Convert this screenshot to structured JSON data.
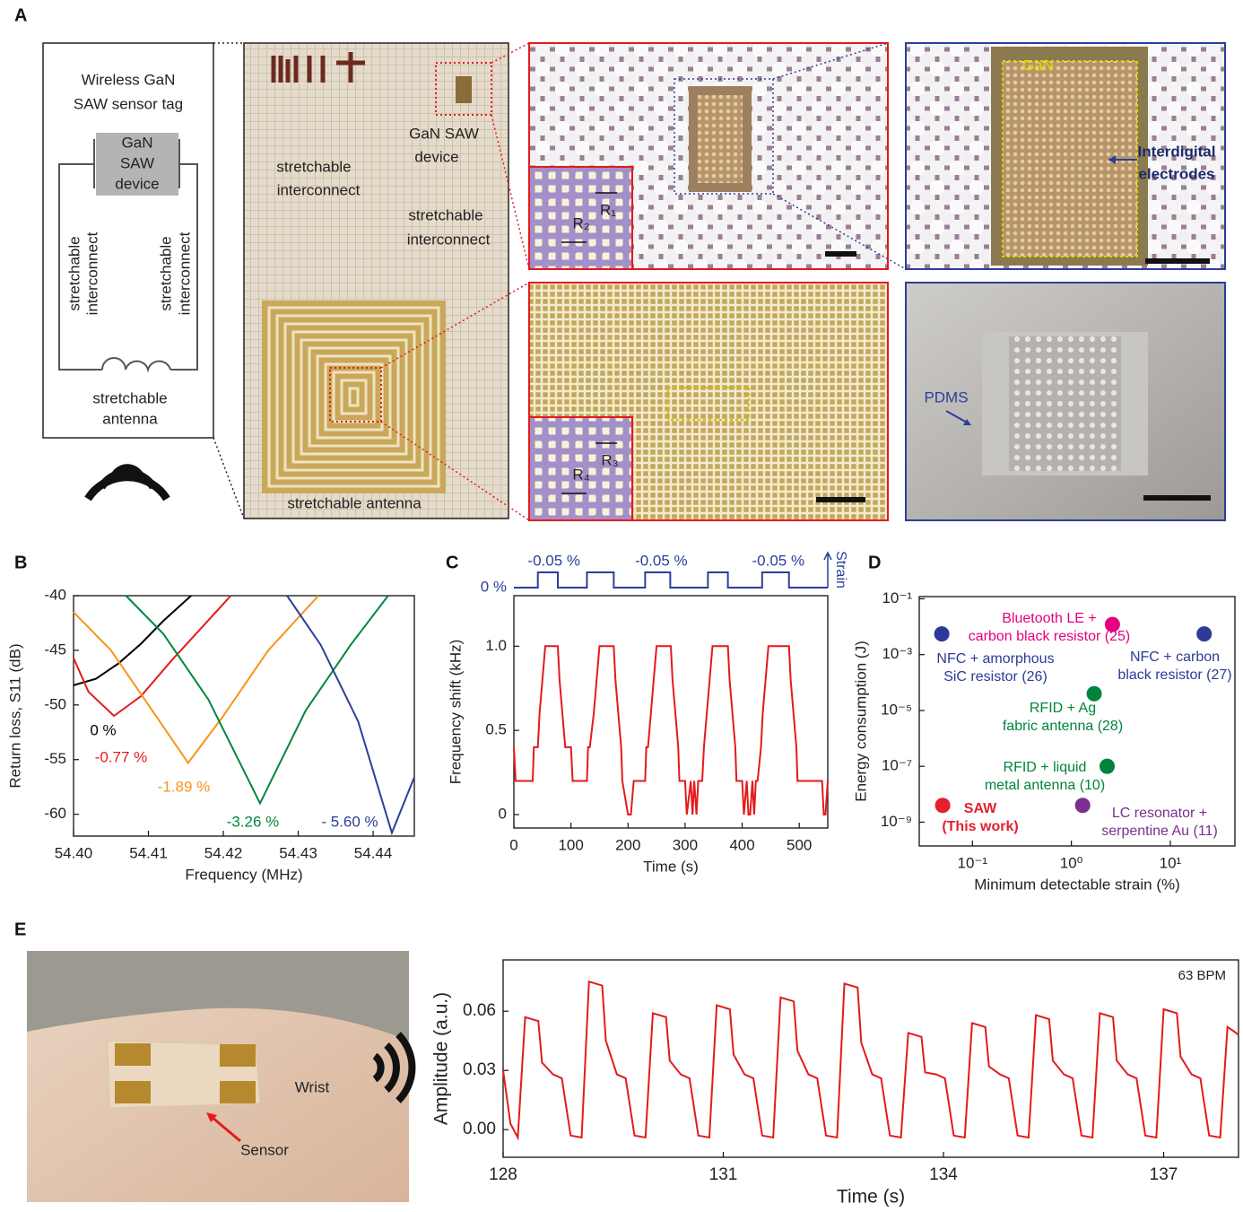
{
  "panel_a": {
    "label": "A",
    "schematic": {
      "title": [
        "Wireless GaN",
        "SAW sensor tag"
      ],
      "device": [
        "GaN",
        "SAW",
        "device"
      ],
      "interconnect_left": [
        "stretchable",
        "interconnect"
      ],
      "interconnect_right": [
        "stretchable",
        "interconnect"
      ],
      "antenna": [
        "stretchable",
        "antenna"
      ]
    },
    "photo": {
      "device": [
        "GaN SAW",
        "device"
      ],
      "interconnect_left": [
        "stretchable",
        "interconnect"
      ],
      "interconnect_right": [
        "stretchable",
        "interconnect"
      ],
      "antenna": "stretchable antenna"
    },
    "zoom_top": {
      "r1": "R₁",
      "r2": "R₂"
    },
    "zoom_bottom": {
      "r3": "R₃",
      "r4": "R₄"
    },
    "device_zoom": {
      "material": "GaN",
      "electrodes": [
        "Interdigital",
        "electrodes"
      ]
    },
    "sem": {
      "material": "PDMS"
    }
  },
  "panel_e": {
    "label": "E",
    "photo": {
      "site": "Wrist",
      "sensor": "Sensor"
    }
  },
  "chart_data": [
    {
      "type": "line",
      "panel_label": "B",
      "x_label": "Frequency (MHz)",
      "y_label": "Return loss, S11 (dB)",
      "xlim": [
        54.4,
        54.4455
      ],
      "ylim": [
        -62,
        -40
      ],
      "xticks": [
        {
          "value": 54.4,
          "label": "54.40"
        },
        54.41,
        54.42,
        54.43,
        54.44
      ],
      "yticks": [
        -40,
        -45,
        -50,
        -55,
        -60
      ],
      "series": [
        {
          "name": "0 %",
          "color": "#000000",
          "x": [
            54.4,
            54.403,
            54.406,
            54.409,
            54.412,
            54.4157
          ],
          "values": [
            -48.2,
            -47.6,
            -46.2,
            -44.4,
            -42.3,
            -40
          ]
        },
        {
          "name": "-0.77 %",
          "color": "#e41a1c",
          "x": [
            54.4,
            54.402,
            54.4054,
            54.409,
            54.413,
            54.417,
            54.421
          ],
          "values": [
            -45.7,
            -48.8,
            -51,
            -49.2,
            -46,
            -43,
            -40
          ]
        },
        {
          "name": "-1.89 %",
          "color": "#f7941d",
          "x": [
            54.4,
            54.405,
            54.41,
            54.4153,
            54.42,
            54.426,
            54.4327
          ],
          "values": [
            -41.5,
            -45,
            -50,
            -55.3,
            -51,
            -45,
            -40
          ]
        },
        {
          "name": "-3.26 %",
          "color": "#00873e",
          "x": [
            54.407,
            54.412,
            54.418,
            54.4249,
            54.431,
            54.437,
            54.442
          ],
          "values": [
            -40,
            -43.5,
            -49.5,
            -59,
            -50.5,
            -44.5,
            -40
          ]
        },
        {
          "name": "- 5.60 %",
          "color": "#2b3f99",
          "x": [
            54.4285,
            54.433,
            54.438,
            54.4425,
            54.4455
          ],
          "values": [
            -40,
            -44.5,
            -51.5,
            -61.7,
            -56.6
          ]
        }
      ]
    },
    {
      "type": "line",
      "panel_label": "C",
      "x_label": "Time (s)",
      "y_label": "Frequency shift (kHz)",
      "xlim": [
        0,
        550
      ],
      "ylim": [
        -0.08,
        1.3
      ],
      "xticks": [
        0,
        100,
        200,
        300,
        400,
        500
      ],
      "yticks": [
        0,
        0.5,
        {
          "value": 1,
          "label": "1.0"
        }
      ],
      "color": "#e41a1c",
      "x": [
        0,
        3,
        33,
        35,
        42,
        45,
        50,
        55,
        60,
        77,
        80,
        85,
        90,
        95,
        100,
        103,
        128,
        130,
        133,
        140,
        145,
        150,
        155,
        175,
        178,
        183,
        188,
        190,
        200,
        205,
        210,
        230,
        232,
        235,
        240,
        245,
        250,
        255,
        275,
        278,
        283,
        288,
        290,
        300,
        303,
        310,
        313,
        316,
        320,
        323,
        330,
        333,
        338,
        343,
        348,
        353,
        375,
        378,
        383,
        388,
        390,
        400,
        403,
        408,
        411,
        414,
        418,
        421,
        424,
        427,
        433,
        436,
        441,
        446,
        451,
        456,
        482,
        485,
        490,
        495,
        497,
        510,
        540,
        543,
        546,
        550
      ],
      "values": [
        0.4,
        0.2,
        0.2,
        0.4,
        0.4,
        0.6,
        0.8,
        1.0,
        1.0,
        1.0,
        0.8,
        0.6,
        0.4,
        0.4,
        0.4,
        0.2,
        0.2,
        0.4,
        0.4,
        0.6,
        0.8,
        1.0,
        1.0,
        1.0,
        0.8,
        0.6,
        0.4,
        0.2,
        0,
        0,
        0.2,
        0.2,
        0.4,
        0.4,
        0.6,
        0.8,
        1.0,
        1.0,
        1.0,
        0.8,
        0.6,
        0.4,
        0.2,
        0.2,
        0,
        0.2,
        0,
        0.2,
        0,
        0.2,
        0.2,
        0.4,
        0.6,
        0.8,
        1.0,
        1.0,
        1.0,
        0.8,
        0.6,
        0.4,
        0.2,
        0.2,
        0,
        0.2,
        0,
        0,
        0.2,
        0,
        0.2,
        0.2,
        0.4,
        0.6,
        0.8,
        1.0,
        1.0,
        1.0,
        1.0,
        0.8,
        0.6,
        0.4,
        0.2,
        0.2,
        0.2,
        0,
        0,
        0.2
      ],
      "strain": {
        "label": "Strain",
        "baseline_label": "0 %",
        "pulse_labels": [
          "-0.05 %",
          "-0.05 %",
          "-0.05 %"
        ],
        "color": "#2b3f99",
        "ylim": [
          0,
          -0.05
        ],
        "x": [
          0,
          42,
          42,
          77,
          77,
          128,
          128,
          175,
          175,
          230,
          230,
          274,
          274,
          340,
          340,
          375,
          375,
          435,
          435,
          482,
          482,
          550
        ],
        "values": [
          0,
          0,
          -0.05,
          -0.05,
          0,
          0,
          -0.05,
          -0.05,
          0,
          0,
          -0.05,
          -0.05,
          0,
          0,
          -0.05,
          -0.05,
          0,
          0,
          -0.05,
          -0.05,
          0,
          0
        ]
      }
    },
    {
      "type": "scatter",
      "panel_label": "D",
      "x_label": "Minimum detectable strain (%)",
      "y_label": "Energy consumption (J)",
      "xscale": "log",
      "yscale": "log",
      "xlim": [
        0.029,
        45
      ],
      "ylim": [
        1.4e-10,
        0.12
      ],
      "xticks": [
        {
          "value": 0.1,
          "label": "10⁻¹"
        },
        {
          "value": 1,
          "label": "10⁰"
        },
        {
          "value": 10,
          "label": "10¹"
        }
      ],
      "yticks": [
        {
          "value": 0.1,
          "label": "10⁻¹"
        },
        {
          "value": 0.001,
          "label": "10⁻³"
        },
        {
          "value": 1e-05,
          "label": "10⁻⁵"
        },
        {
          "value": 1e-07,
          "label": "10⁻⁷"
        },
        {
          "value": 1e-09,
          "label": "10⁻⁹"
        }
      ],
      "points": [
        {
          "label": [
            "Bluetooth LE +",
            "carbon black resistor (25)"
          ],
          "color": "#e5007e",
          "x": 2.6,
          "y": 0.012
        },
        {
          "label": [
            "NFC + amorphous",
            "SiC resistor (26)"
          ],
          "color": "#2e3a97",
          "x": 0.049,
          "y": 0.0055
        },
        {
          "label": [
            "NFC + carbon",
            "black resistor (27)"
          ],
          "color": "#2e3a97",
          "x": 22,
          "y": 0.0055
        },
        {
          "label": [
            "RFID + Ag",
            "fabric antenna (28)"
          ],
          "color": "#00843d",
          "x": 1.7,
          "y": 4e-05
        },
        {
          "label": [
            "RFID + liquid",
            "metal antenna (10)"
          ],
          "color": "#00843d",
          "x": 2.3,
          "y": 1e-07
        },
        {
          "label": [
            "LC resonator +",
            "serpentine Au (11)"
          ],
          "color": "#7b2f8e",
          "x": 1.3,
          "y": 4e-09
        },
        {
          "label": [
            "SAW",
            "(This work)"
          ],
          "color": "#e5202e",
          "x": 0.05,
          "y": 4e-09
        }
      ]
    },
    {
      "type": "line",
      "panel_label": "E",
      "x_label": "Time (s)",
      "y_label": "Amplitude (a.u.)",
      "annotation": "63 BPM",
      "xlim": [
        128,
        138.02
      ],
      "ylim": [
        -0.014,
        0.086
      ],
      "xticks": [
        128,
        131,
        134,
        137
      ],
      "yticks": [
        {
          "value": 0,
          "label": "0.00"
        },
        0.03,
        0.06
      ],
      "color": "#e41a1c",
      "x": [
        128.0,
        128.1,
        128.2,
        128.3,
        128.48,
        128.53,
        128.68,
        128.8,
        128.92,
        129.07,
        129.17,
        129.35,
        129.4,
        129.55,
        129.67,
        129.79,
        129.94,
        130.04,
        130.22,
        130.27,
        130.42,
        130.54,
        130.66,
        130.81,
        130.91,
        131.09,
        131.14,
        131.29,
        131.41,
        131.53,
        131.68,
        131.78,
        131.96,
        132.01,
        132.16,
        132.28,
        132.4,
        132.55,
        132.65,
        132.83,
        132.88,
        133.03,
        133.15,
        133.27,
        133.42,
        133.52,
        133.7,
        133.75,
        133.9,
        134.02,
        134.14,
        134.29,
        134.39,
        134.57,
        134.62,
        134.77,
        134.89,
        135.01,
        135.16,
        135.26,
        135.44,
        135.49,
        135.64,
        135.76,
        135.88,
        136.03,
        136.13,
        136.31,
        136.36,
        136.51,
        136.63,
        136.75,
        136.9,
        137.0,
        137.18,
        137.23,
        137.38,
        137.5,
        137.62,
        137.77,
        137.87,
        137.95,
        138.02
      ],
      "values": [
        0.03,
        0.003,
        -0.004,
        0.057,
        0.055,
        0.034,
        0.028,
        0.026,
        -0.003,
        -0.004,
        0.075,
        0.073,
        0.045,
        0.028,
        0.026,
        -0.003,
        -0.004,
        0.059,
        0.057,
        0.035,
        0.028,
        0.026,
        -0.003,
        -0.004,
        0.063,
        0.061,
        0.038,
        0.028,
        0.026,
        -0.003,
        -0.004,
        0.067,
        0.065,
        0.04,
        0.028,
        0.026,
        -0.003,
        -0.004,
        0.074,
        0.072,
        0.044,
        0.028,
        0.026,
        -0.003,
        -0.004,
        0.049,
        0.047,
        0.029,
        0.028,
        0.026,
        -0.003,
        -0.004,
        0.054,
        0.052,
        0.032,
        0.028,
        0.026,
        -0.003,
        -0.004,
        0.058,
        0.056,
        0.035,
        0.028,
        0.026,
        -0.003,
        -0.004,
        0.059,
        0.057,
        0.035,
        0.028,
        0.026,
        -0.003,
        -0.004,
        0.061,
        0.059,
        0.037,
        0.028,
        0.026,
        -0.003,
        -0.004,
        0.052,
        0.05,
        0.048
      ]
    }
  ]
}
